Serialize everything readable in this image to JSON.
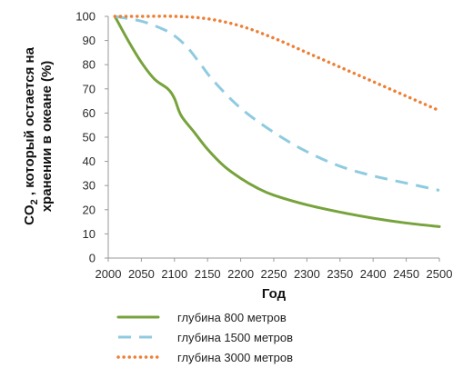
{
  "chart_data": {
    "type": "line",
    "title": "",
    "xlabel": "Год",
    "ylabel": {
      "prefix": "CO",
      "subscript": "2",
      "line1_rest": " , который остается на",
      "line2": "хранении в океане (%)"
    },
    "xlim": [
      2000,
      2500
    ],
    "ylim": [
      0,
      100
    ],
    "x_ticks": [
      "2000",
      "2050",
      "2100",
      "2150",
      "2200",
      "2250",
      "2300",
      "2350",
      "2400",
      "2450",
      "2500"
    ],
    "y_ticks": [
      "0",
      "10",
      "20",
      "30",
      "40",
      "50",
      "60",
      "70",
      "80",
      "90",
      "100"
    ],
    "grid": false,
    "legend_position": "bottom",
    "series": [
      {
        "name": "глубина 800 метров",
        "color": "#77a33c",
        "style": "solid",
        "x": [
          2010,
          2030,
          2050,
          2070,
          2090,
          2100,
          2110,
          2130,
          2150,
          2175,
          2200,
          2225,
          2250,
          2300,
          2350,
          2400,
          2450,
          2500
        ],
        "y": [
          100,
          90,
          81,
          74,
          70,
          66,
          59,
          52,
          45,
          38,
          33,
          29,
          26,
          22,
          19,
          16.5,
          14.5,
          13
        ]
      },
      {
        "name": "глубина 1500 метров",
        "color": "#8fcbe0",
        "style": "dashed",
        "x": [
          2010,
          2050,
          2080,
          2100,
          2120,
          2140,
          2160,
          2200,
          2250,
          2300,
          2350,
          2400,
          2450,
          2500
        ],
        "y": [
          100,
          98,
          95,
          92,
          87,
          80,
          73,
          62,
          52,
          44,
          38,
          34,
          31,
          28
        ]
      },
      {
        "name": "глубина 3000 метров",
        "color": "#ee7f35",
        "style": "dotted",
        "x": [
          2010,
          2050,
          2100,
          2150,
          2200,
          2250,
          2300,
          2350,
          2400,
          2450,
          2500
        ],
        "y": [
          100,
          100,
          100,
          99,
          96,
          91,
          85,
          79,
          73,
          67,
          61
        ]
      }
    ]
  }
}
